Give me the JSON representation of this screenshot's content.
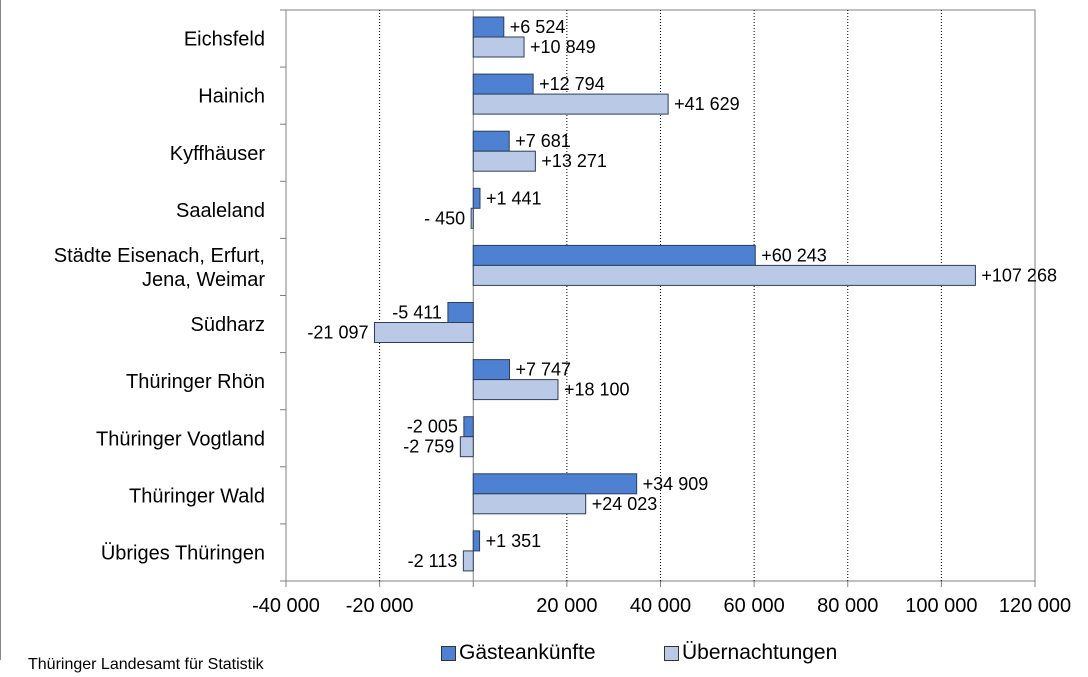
{
  "source": "Thüringer Landesamt für Statistik",
  "colors": {
    "series1": "#4f81d3",
    "series2": "#b9c9e6",
    "border": "#2d3e5c"
  },
  "chart_data": {
    "type": "bar",
    "orientation": "horizontal",
    "categories": [
      "Eichsfeld",
      "Hainich",
      "Kyffhäuser",
      "Saaleland",
      "Städte Eisenach, Erfurt,\nJena, Weimar",
      "Südharz",
      "Thüringer Rhön",
      "Thüringer Vogtland",
      "Thüringer Wald",
      "Übriges Thüringen"
    ],
    "series": [
      {
        "name": "Gästeankünfte",
        "values": [
          6524,
          12794,
          7681,
          1441,
          60243,
          -5411,
          7747,
          -2005,
          34909,
          1351
        ],
        "labels": [
          "+6 524",
          "+12 794",
          "+7 681",
          "+1 441",
          "+60 243",
          "-5 411",
          "+7 747",
          "-2 005",
          "+34 909",
          "+1 351"
        ]
      },
      {
        "name": "Übernachtungen",
        "values": [
          10849,
          41629,
          13271,
          -450,
          107268,
          -21097,
          18100,
          -2759,
          24023,
          -2113
        ],
        "labels": [
          "+10 849",
          "+41 629",
          "+13 271",
          "- 450",
          "+107 268",
          "-21 097",
          "+18 100",
          "-2 759",
          "+24 023",
          "-2 113"
        ]
      }
    ],
    "xlim": [
      -40000,
      120000
    ],
    "xticks": [
      -40000,
      -20000,
      0,
      20000,
      40000,
      60000,
      80000,
      100000,
      120000
    ],
    "xtick_labels": [
      "-40 000",
      "-20 000",
      "",
      "20 000",
      "40 000",
      "60 000",
      "80 000",
      "100 000",
      "120 000"
    ],
    "grid": "vertical dotted",
    "legend": "bottom"
  }
}
